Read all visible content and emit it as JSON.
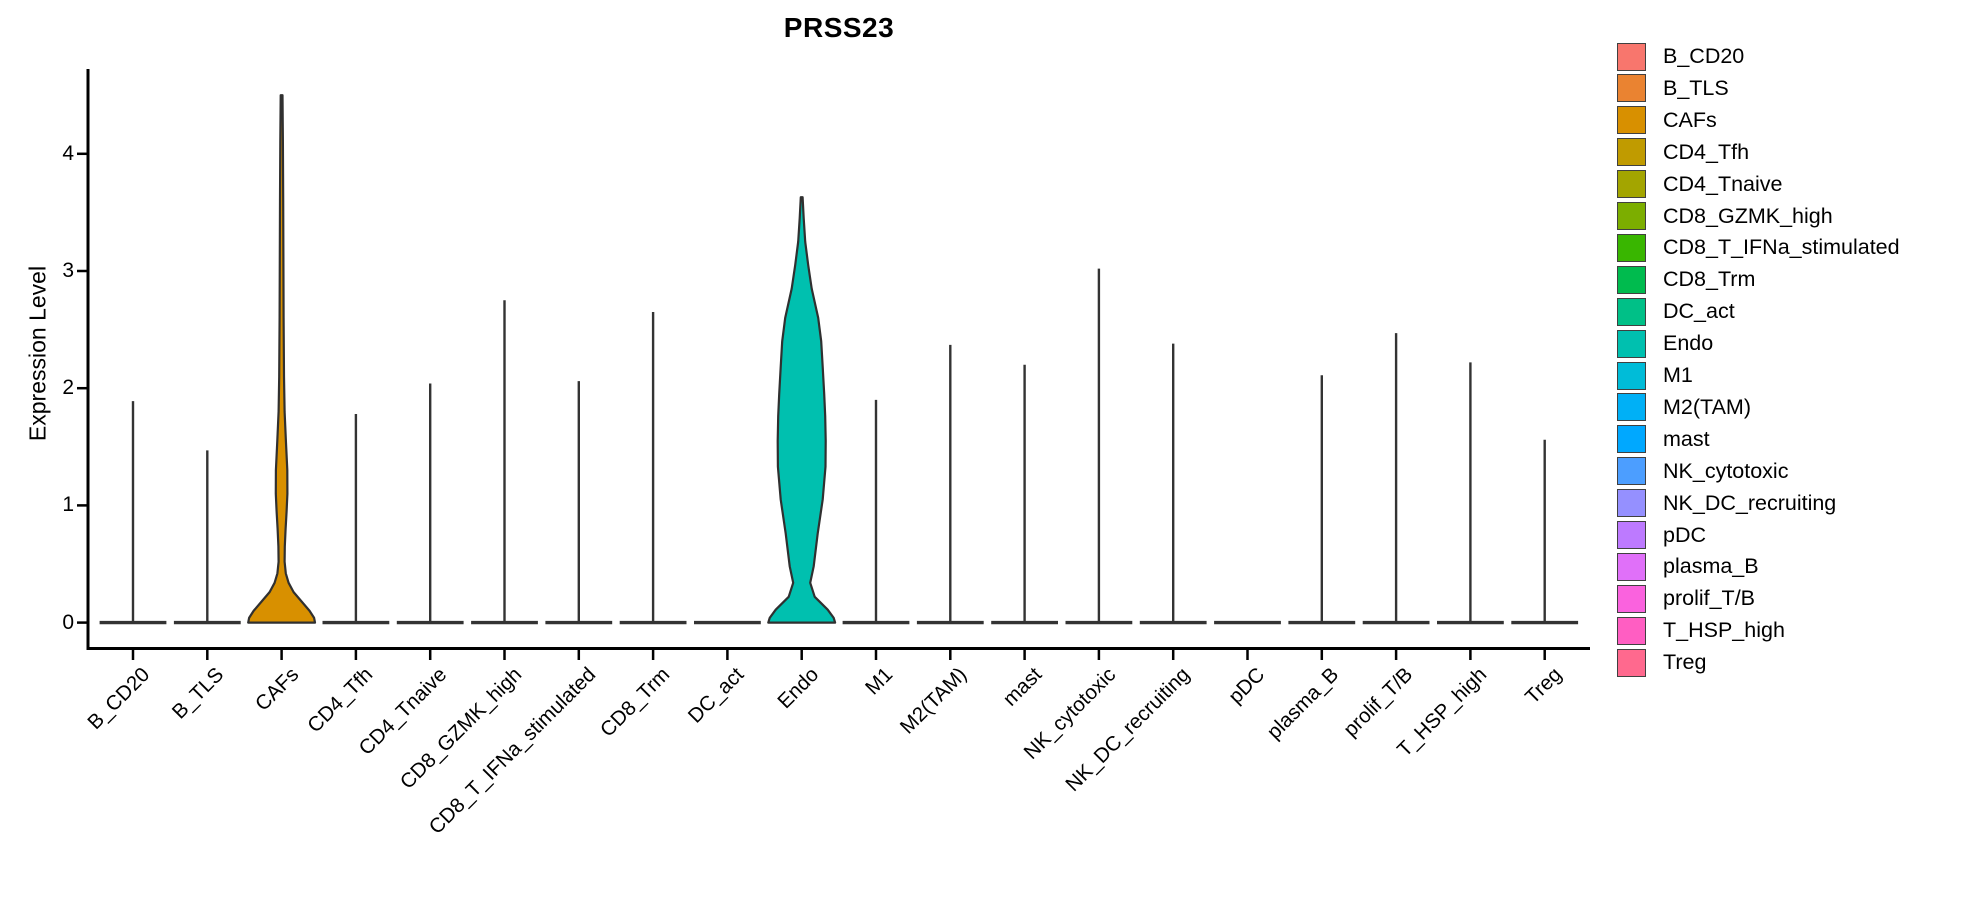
{
  "title": "PRSS23",
  "y_axis": {
    "label": "Expression Level",
    "tick_labels": [
      "0",
      "1",
      "2",
      "3",
      "4"
    ],
    "tick_values": [
      0,
      1,
      2,
      3,
      4
    ]
  },
  "chart_data": {
    "type": "violin",
    "title": "PRSS23",
    "xlabel": "",
    "ylabel": "Expression Level",
    "ylim": [
      -0.22,
      4.72
    ],
    "grid": false,
    "legend_position": "right",
    "categories": [
      {
        "name": "B_CD20",
        "color": "#F8766D",
        "max": 1.89
      },
      {
        "name": "B_TLS",
        "color": "#EA8331",
        "max": 1.47
      },
      {
        "name": "CAFs",
        "color": "#D89000",
        "max": 4.5
      },
      {
        "name": "CD4_Tfh",
        "color": "#C09B00",
        "max": 1.78
      },
      {
        "name": "CD4_Tnaive",
        "color": "#A3A500",
        "max": 2.04
      },
      {
        "name": "CD8_GZMK_high",
        "color": "#7CAE00",
        "max": 2.75
      },
      {
        "name": "CD8_T_IFNa_stimulated",
        "color": "#39B600",
        "max": 2.06
      },
      {
        "name": "CD8_Trm",
        "color": "#00BB4E",
        "max": 2.65
      },
      {
        "name": "DC_act",
        "color": "#00C087",
        "max": 0
      },
      {
        "name": "Endo",
        "color": "#00C0AF",
        "max": 3.63
      },
      {
        "name": "M1",
        "color": "#00BCD8",
        "max": 1.9
      },
      {
        "name": "M2(TAM)",
        "color": "#00B0F6",
        "max": 2.37
      },
      {
        "name": "mast",
        "color": "#00A8FF",
        "max": 2.2
      },
      {
        "name": "NK_cytotoxic",
        "color": "#4C9EFF",
        "max": 3.02
      },
      {
        "name": "NK_DC_recruiting",
        "color": "#9590FF",
        "max": 2.38
      },
      {
        "name": "pDC",
        "color": "#BD7AFF",
        "max": 0
      },
      {
        "name": "plasma_B",
        "color": "#E070F9",
        "max": 2.11
      },
      {
        "name": "prolif_T/B",
        "color": "#FA62DE",
        "max": 2.47
      },
      {
        "name": "T_HSP_high",
        "color": "#FF5EC2",
        "max": 2.22
      },
      {
        "name": "Treg",
        "color": "#FF698E",
        "max": 1.56
      }
    ],
    "violin_profiles": {
      "CAFs": [
        [
          4.5,
          0.9
        ],
        [
          4.1,
          1.3
        ],
        [
          3.6,
          1.6
        ],
        [
          3.1,
          1.8
        ],
        [
          2.6,
          2.0
        ],
        [
          2.1,
          2.4
        ],
        [
          1.8,
          3.0
        ],
        [
          1.55,
          4.3
        ],
        [
          1.3,
          5.7
        ],
        [
          1.1,
          5.8
        ],
        [
          0.95,
          5.0
        ],
        [
          0.8,
          4.0
        ],
        [
          0.65,
          3.2
        ],
        [
          0.52,
          3.0
        ],
        [
          0.42,
          4.2
        ],
        [
          0.34,
          7.0
        ],
        [
          0.26,
          12.0
        ],
        [
          0.18,
          20.0
        ],
        [
          0.1,
          28.0
        ],
        [
          0.04,
          32.5
        ],
        [
          0.0,
          33.4
        ]
      ],
      "Endo": [
        [
          3.63,
          0.9
        ],
        [
          3.45,
          2.0
        ],
        [
          3.25,
          3.5
        ],
        [
          3.05,
          6.5
        ],
        [
          2.85,
          10.0
        ],
        [
          2.6,
          16.5
        ],
        [
          2.4,
          19.5
        ],
        [
          2.18,
          21.0
        ],
        [
          1.95,
          22.5
        ],
        [
          1.76,
          23.5
        ],
        [
          1.55,
          24.0
        ],
        [
          1.33,
          23.8
        ],
        [
          1.05,
          21.0
        ],
        [
          0.76,
          16.0
        ],
        [
          0.48,
          12.0
        ],
        [
          0.34,
          8.5
        ],
        [
          0.22,
          13.0
        ],
        [
          0.11,
          26.0
        ],
        [
          0.04,
          32.0
        ],
        [
          0.0,
          33.4
        ]
      ]
    },
    "flat_at_zero": [
      "DC_act",
      "pDC"
    ]
  },
  "legend": {
    "entries": [
      "B_CD20",
      "B_TLS",
      "CAFs",
      "CD4_Tfh",
      "CD4_Tnaive",
      "CD8_GZMK_high",
      "CD8_T_IFNa_stimulated",
      "CD8_Trm",
      "DC_act",
      "Endo",
      "M1",
      "M2(TAM)",
      "mast",
      "NK_cytotoxic",
      "NK_DC_recruiting",
      "pDC",
      "plasma_B",
      "prolif_T/B",
      "T_HSP_high",
      "Treg"
    ]
  },
  "style_colors": {
    "violin_outline": "#303030",
    "stem": "#333333",
    "axis": "#000000",
    "text": "#000000"
  }
}
